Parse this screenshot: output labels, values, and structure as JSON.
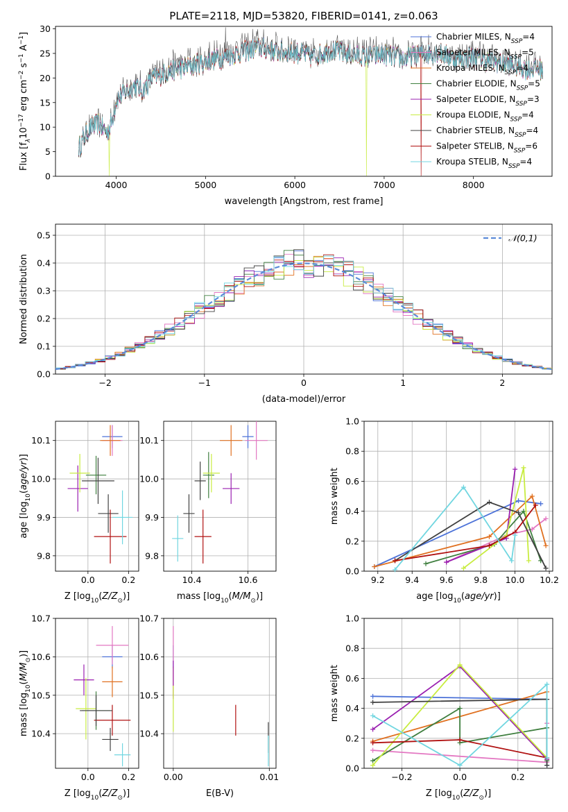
{
  "title": "PLATE=2118, MJD=53820, FIBERID=0141, z=0.063",
  "colors": {
    "Chabrier MILES": "#4c72d8",
    "Salpeter MILES": "#e377c2",
    "Kroupa MILES": "#e07020",
    "Chabrier ELODIE": "#3f7f3f",
    "Salpeter ELODIE": "#9a1fb0",
    "Kroupa ELODIE": "#c8ec40",
    "Chabrier STELIB": "#404040",
    "Salpeter STELIB": "#b01010",
    "Kroupa STELIB": "#70d6e0"
  },
  "chart_data": [
    {
      "id": "spectrum",
      "type": "line",
      "xlabel": "wavelength [Angstrom, rest frame]",
      "ylabel": "Flux [f",
      "xlim": [
        3320,
        8880
      ],
      "ylim": [
        0,
        30.5
      ],
      "xticks": [
        4000,
        5000,
        6000,
        7000,
        8000
      ],
      "yticks": [
        0,
        5,
        10,
        15,
        20,
        25,
        30
      ],
      "legend_position": "right",
      "grid": false,
      "continuum": {
        "x": [
          3580,
          3700,
          3800,
          3900,
          3950,
          4000,
          4100,
          4200,
          4300,
          4400,
          4600,
          4800,
          5000,
          5200,
          5400,
          5600,
          5800,
          6000,
          6200,
          6400,
          6600,
          6800,
          7000,
          7200,
          7400,
          7600,
          7800,
          8000,
          8200,
          8400,
          8600,
          8780
        ],
        "y": [
          6,
          10,
          11,
          9,
          11.5,
          16,
          17.5,
          19,
          18,
          20.5,
          22,
          23,
          24,
          25,
          26,
          27,
          26,
          26,
          25,
          26.5,
          25.5,
          25,
          25.5,
          24.5,
          25.5,
          26,
          24.5,
          25,
          24,
          23.5,
          22.5,
          22.5
        ]
      },
      "legend": [
        {
          "model": "Chabrier MILES",
          "label": "Chabrier MILES, N",
          "sub": "SSP",
          "suffix": "=4"
        },
        {
          "model": "Salpeter MILES",
          "label": "Salpeter MILES, N",
          "sub": "SSP",
          "suffix": "=5"
        },
        {
          "model": "Kroupa MILES",
          "label": "Kroupa MILES, N",
          "sub": "SSP",
          "suffix": "=4"
        },
        {
          "model": "Chabrier ELODIE",
          "label": "Chabrier ELODIE, N",
          "sub": "SSP",
          "suffix": "=5"
        },
        {
          "model": "Salpeter ELODIE",
          "label": "Salpeter ELODIE, N",
          "sub": "SSP",
          "suffix": "=3"
        },
        {
          "model": "Kroupa ELODIE",
          "label": "Kroupa ELODIE, N",
          "sub": "SSP",
          "suffix": "=4"
        },
        {
          "model": "Chabrier STELIB",
          "label": "Chabrier STELIB, N",
          "sub": "SSP",
          "suffix": "=4"
        },
        {
          "model": "Salpeter STELIB",
          "label": "Salpeter STELIB, N",
          "sub": "SSP",
          "suffix": "=6"
        },
        {
          "model": "Kroupa STELIB",
          "label": "Kroupa STELIB, N",
          "sub": "SSP",
          "suffix": "=4"
        }
      ]
    },
    {
      "id": "residuals",
      "type": "histogram",
      "xlabel": "(data-model)/error",
      "ylabel": "Normed distribution",
      "xlim": [
        -2.5,
        2.5
      ],
      "ylim": [
        0,
        0.54
      ],
      "xticks": [
        -2,
        -1,
        0,
        1,
        2
      ],
      "yticks": [
        0,
        0.1,
        0.2,
        0.3,
        0.4,
        0.5
      ],
      "grid": true,
      "legend": [
        {
          "label": "𝒩(0,1)",
          "style": "dashed",
          "color": "#5b8ad8"
        }
      ],
      "bin_width": 0.1
    },
    {
      "id": "age-vs-Z",
      "type": "errorbar",
      "xlabel": "Z [log",
      "ylabel": "age  [log",
      "xlim": [
        -0.16,
        0.25
      ],
      "ylim": [
        9.76,
        10.15
      ],
      "xticks": [
        0.0,
        0.2
      ],
      "yticks": [
        9.8,
        9.9,
        10.0,
        10.1
      ],
      "grid": true,
      "points": [
        {
          "model": "Chabrier MILES",
          "x": 0.12,
          "y": 10.11,
          "xerr": 0.05,
          "yerr": 0.03
        },
        {
          "model": "Salpeter MILES",
          "x": 0.12,
          "y": 10.1,
          "xerr": 0.05,
          "yerr": 0.04
        },
        {
          "model": "Kroupa MILES",
          "x": 0.11,
          "y": 10.1,
          "xerr": 0.05,
          "yerr": 0.04
        },
        {
          "model": "Chabrier ELODIE",
          "x": 0.04,
          "y": 10.01,
          "xerr": 0.05,
          "yerr": 0.05
        },
        {
          "model": "Salpeter ELODIE",
          "x": -0.05,
          "y": 9.975,
          "xerr": 0.05,
          "yerr": 0.06
        },
        {
          "model": "Kroupa ELODIE",
          "x": -0.04,
          "y": 10.015,
          "xerr": 0.05,
          "yerr": 0.05
        },
        {
          "model": "Chabrier STELIB",
          "x": 0.1,
          "y": 9.91,
          "xerr": 0.05,
          "yerr": 0.05
        },
        {
          "model": "Salpeter STELIB",
          "x": 0.11,
          "y": 9.85,
          "xerr": 0.08,
          "yerr": 0.07
        },
        {
          "model": "Kroupa STELIB",
          "x": 0.17,
          "y": 9.9,
          "xerr": 0.05,
          "yerr": 0.07
        },
        {
          "model": "Chabrier STELIB",
          "x": 0.05,
          "y": 9.995,
          "xerr": 0.08,
          "yerr": 0.06
        }
      ]
    },
    {
      "id": "age-vs-mass",
      "type": "errorbar",
      "xlabel": "mass [log",
      "ylabel": "",
      "xlim": [
        10.3,
        10.7
      ],
      "ylim": [
        9.76,
        10.15
      ],
      "xticks": [
        10.4,
        10.6
      ],
      "yticks": [
        9.8,
        9.9,
        10.0,
        10.1
      ],
      "grid": true,
      "points": [
        {
          "model": "Chabrier MILES",
          "x": 10.6,
          "y": 10.11,
          "xerr": 0.02,
          "yerr": 0.03
        },
        {
          "model": "Salpeter MILES",
          "x": 10.63,
          "y": 10.1,
          "xerr": 0.04,
          "yerr": 0.05
        },
        {
          "model": "Kroupa MILES",
          "x": 10.54,
          "y": 10.1,
          "xerr": 0.04,
          "yerr": 0.04
        },
        {
          "model": "Chabrier ELODIE",
          "x": 10.46,
          "y": 10.01,
          "xerr": 0.02,
          "yerr": 0.06
        },
        {
          "model": "Salpeter ELODIE",
          "x": 10.54,
          "y": 9.975,
          "xerr": 0.03,
          "yerr": 0.04
        },
        {
          "model": "Kroupa ELODIE",
          "x": 10.47,
          "y": 10.015,
          "xerr": 0.03,
          "yerr": 0.05
        },
        {
          "model": "Chabrier STELIB",
          "x": 10.39,
          "y": 9.91,
          "xerr": 0.02,
          "yerr": 0.05
        },
        {
          "model": "Salpeter STELIB",
          "x": 10.44,
          "y": 9.85,
          "xerr": 0.03,
          "yerr": 0.07
        },
        {
          "model": "Kroupa STELIB",
          "x": 10.35,
          "y": 9.845,
          "xerr": 0.02,
          "yerr": 0.06
        },
        {
          "model": "Chabrier STELIB",
          "x": 10.43,
          "y": 9.995,
          "xerr": 0.02,
          "yerr": 0.05
        }
      ]
    },
    {
      "id": "mass-weight-vs-age",
      "type": "line",
      "xlabel": "age  [log",
      "ylabel": "mass weight",
      "xlim": [
        9.12,
        10.22
      ],
      "ylim": [
        0,
        1.0
      ],
      "xticks": [
        9.2,
        9.4,
        9.6,
        9.8,
        10.0,
        10.2
      ],
      "yticks": [
        0.0,
        0.2,
        0.4,
        0.6,
        0.8,
        1.0
      ],
      "grid": true,
      "series": [
        {
          "model": "Chabrier MILES",
          "x": [
            9.18,
            10.02,
            10.15
          ],
          "y": [
            0.03,
            0.47,
            0.45
          ]
        },
        {
          "model": "Salpeter MILES",
          "x": [
            9.6,
            9.95,
            10.1,
            10.18
          ],
          "y": [
            0.06,
            0.24,
            0.28,
            0.35
          ]
        },
        {
          "model": "Kroupa MILES",
          "x": [
            9.18,
            9.85,
            10.1,
            10.18
          ],
          "y": [
            0.03,
            0.23,
            0.5,
            0.17
          ]
        },
        {
          "model": "Chabrier ELODIE",
          "x": [
            9.48,
            9.88,
            10.05,
            10.15
          ],
          "y": [
            0.05,
            0.18,
            0.4,
            0.07
          ]
        },
        {
          "model": "Salpeter ELODIE",
          "x": [
            9.6,
            9.95,
            10.0
          ],
          "y": [
            0.06,
            0.22,
            0.68
          ]
        },
        {
          "model": "Kroupa ELODIE",
          "x": [
            9.7,
            9.95,
            10.05,
            10.08
          ],
          "y": [
            0.02,
            0.24,
            0.69,
            0.07
          ]
        },
        {
          "model": "Chabrier STELIB",
          "x": [
            9.3,
            9.85,
            10.02,
            10.18
          ],
          "y": [
            0.07,
            0.46,
            0.39,
            0.02
          ]
        },
        {
          "model": "Salpeter STELIB",
          "x": [
            9.3,
            9.85,
            10.0,
            10.12
          ],
          "y": [
            0.07,
            0.17,
            0.26,
            0.44
          ]
        },
        {
          "model": "Kroupa STELIB",
          "x": [
            9.3,
            9.7,
            9.98,
            10.0
          ],
          "y": [
            0.01,
            0.56,
            0.07,
            0.24
          ]
        }
      ]
    },
    {
      "id": "mass-vs-Z",
      "type": "errorbar",
      "xlabel": "Z [log",
      "ylabel": "mass [log",
      "xlim": [
        -0.16,
        0.25
      ],
      "ylim": [
        10.31,
        10.7
      ],
      "xticks": [
        0.0,
        0.2
      ],
      "yticks": [
        10.4,
        10.5,
        10.6,
        10.7
      ],
      "grid": true,
      "points": [
        {
          "model": "Chabrier MILES",
          "x": 0.12,
          "y": 10.6,
          "xerr": 0.05,
          "yerr": 0.03
        },
        {
          "model": "Salpeter MILES",
          "x": 0.12,
          "y": 10.63,
          "xerr": 0.08,
          "yerr": 0.05
        },
        {
          "model": "Kroupa MILES",
          "x": 0.12,
          "y": 10.535,
          "xerr": 0.05,
          "yerr": 0.04
        },
        {
          "model": "Chabrier ELODIE",
          "x": 0.04,
          "y": 10.46,
          "xerr": 0.07,
          "yerr": 0.05
        },
        {
          "model": "Salpeter ELODIE",
          "x": -0.02,
          "y": 10.54,
          "xerr": 0.05,
          "yerr": 0.04
        },
        {
          "model": "Kroupa ELODIE",
          "x": -0.01,
          "y": 10.465,
          "xerr": 0.05,
          "yerr": 0.08
        },
        {
          "model": "Chabrier STELIB",
          "x": 0.11,
          "y": 10.385,
          "xerr": 0.04,
          "yerr": 0.03
        },
        {
          "model": "Salpeter STELIB",
          "x": 0.12,
          "y": 10.435,
          "xerr": 0.09,
          "yerr": 0.04
        },
        {
          "model": "Kroupa STELIB",
          "x": 0.17,
          "y": 10.345,
          "xerr": 0.04,
          "yerr": 0.03
        },
        {
          "model": "Chabrier STELIB",
          "x": 0.04,
          "y": 10.46,
          "xerr": 0.08,
          "yerr": 0.04
        }
      ]
    },
    {
      "id": "mass-vs-ebv",
      "type": "errorbar",
      "xlabel": "E(B-V)",
      "ylabel": "",
      "xlim": [
        -0.001,
        0.0107
      ],
      "ylim": [
        10.31,
        10.7
      ],
      "xticks": [
        0.0,
        0.01
      ],
      "yticks": [
        10.4,
        10.5,
        10.6,
        10.7
      ],
      "grid": true,
      "points": [
        {
          "model": "Chabrier MILES",
          "x": 0.0,
          "y": 10.6,
          "xerr": 0.0,
          "yerr": 0.03
        },
        {
          "model": "Salpeter MILES",
          "x": 0.0,
          "y": 10.63,
          "xerr": 0.0,
          "yerr": 0.05
        },
        {
          "model": "Kroupa MILES",
          "x": 0.0,
          "y": 10.535,
          "xerr": 0.0,
          "yerr": 0.04
        },
        {
          "model": "Salpeter ELODIE",
          "x": 0.0,
          "y": 10.54,
          "xerr": 0.0,
          "yerr": 0.05
        },
        {
          "model": "Kroupa ELODIE",
          "x": 0.0,
          "y": 10.465,
          "xerr": 0.0,
          "yerr": 0.06
        },
        {
          "model": "Salpeter STELIB",
          "x": 0.0065,
          "y": 10.435,
          "xerr": 0.0,
          "yerr": 0.04
        },
        {
          "model": "Chabrier STELIB",
          "x": 0.0099,
          "y": 10.39,
          "xerr": 0.0,
          "yerr": 0.04
        },
        {
          "model": "Kroupa STELIB",
          "x": 0.0099,
          "y": 10.355,
          "xerr": 0.0,
          "yerr": 0.04
        }
      ]
    },
    {
      "id": "mass-weight-vs-Z",
      "type": "line",
      "xlabel": "Z [log",
      "ylabel": "mass weight",
      "xlim": [
        -0.33,
        0.32
      ],
      "ylim": [
        0,
        1.0
      ],
      "xticks": [
        -0.2,
        0.0,
        0.2
      ],
      "yticks": [
        0.0,
        0.2,
        0.4,
        0.6,
        0.8,
        1.0
      ],
      "grid": true,
      "series": [
        {
          "model": "Chabrier MILES",
          "x": [
            -0.3,
            0.3,
            0.3
          ],
          "y": [
            0.48,
            0.46,
            0.02
          ]
        },
        {
          "model": "Salpeter MILES",
          "x": [
            -0.3,
            0.3,
            0.3
          ],
          "y": [
            0.12,
            0.04,
            0.3
          ]
        },
        {
          "model": "Kroupa MILES",
          "x": [
            -0.3,
            0.3,
            0.3
          ],
          "y": [
            0.18,
            0.51,
            0.06
          ]
        },
        {
          "model": "Chabrier ELODIE",
          "x": [
            -0.3,
            0.0,
            0.0,
            0.3,
            0.3
          ],
          "y": [
            0.05,
            0.4,
            0.17,
            0.27,
            0.05
          ]
        },
        {
          "model": "Salpeter ELODIE",
          "x": [
            -0.3,
            0.0,
            0.3
          ],
          "y": [
            0.26,
            0.68,
            0.06
          ]
        },
        {
          "model": "Kroupa ELODIE",
          "x": [
            -0.3,
            0.0,
            0.3
          ],
          "y": [
            0.02,
            0.69,
            0.07
          ]
        },
        {
          "model": "Chabrier STELIB",
          "x": [
            -0.3,
            0.3,
            0.3
          ],
          "y": [
            0.44,
            0.46,
            0.02
          ]
        },
        {
          "model": "Salpeter STELIB",
          "x": [
            -0.3,
            0.0,
            0.3
          ],
          "y": [
            0.17,
            0.19,
            0.07
          ]
        },
        {
          "model": "Kroupa STELIB",
          "x": [
            -0.3,
            0.0,
            0.3,
            0.3
          ],
          "y": [
            0.35,
            0.02,
            0.56,
            0.07
          ]
        }
      ]
    }
  ]
}
